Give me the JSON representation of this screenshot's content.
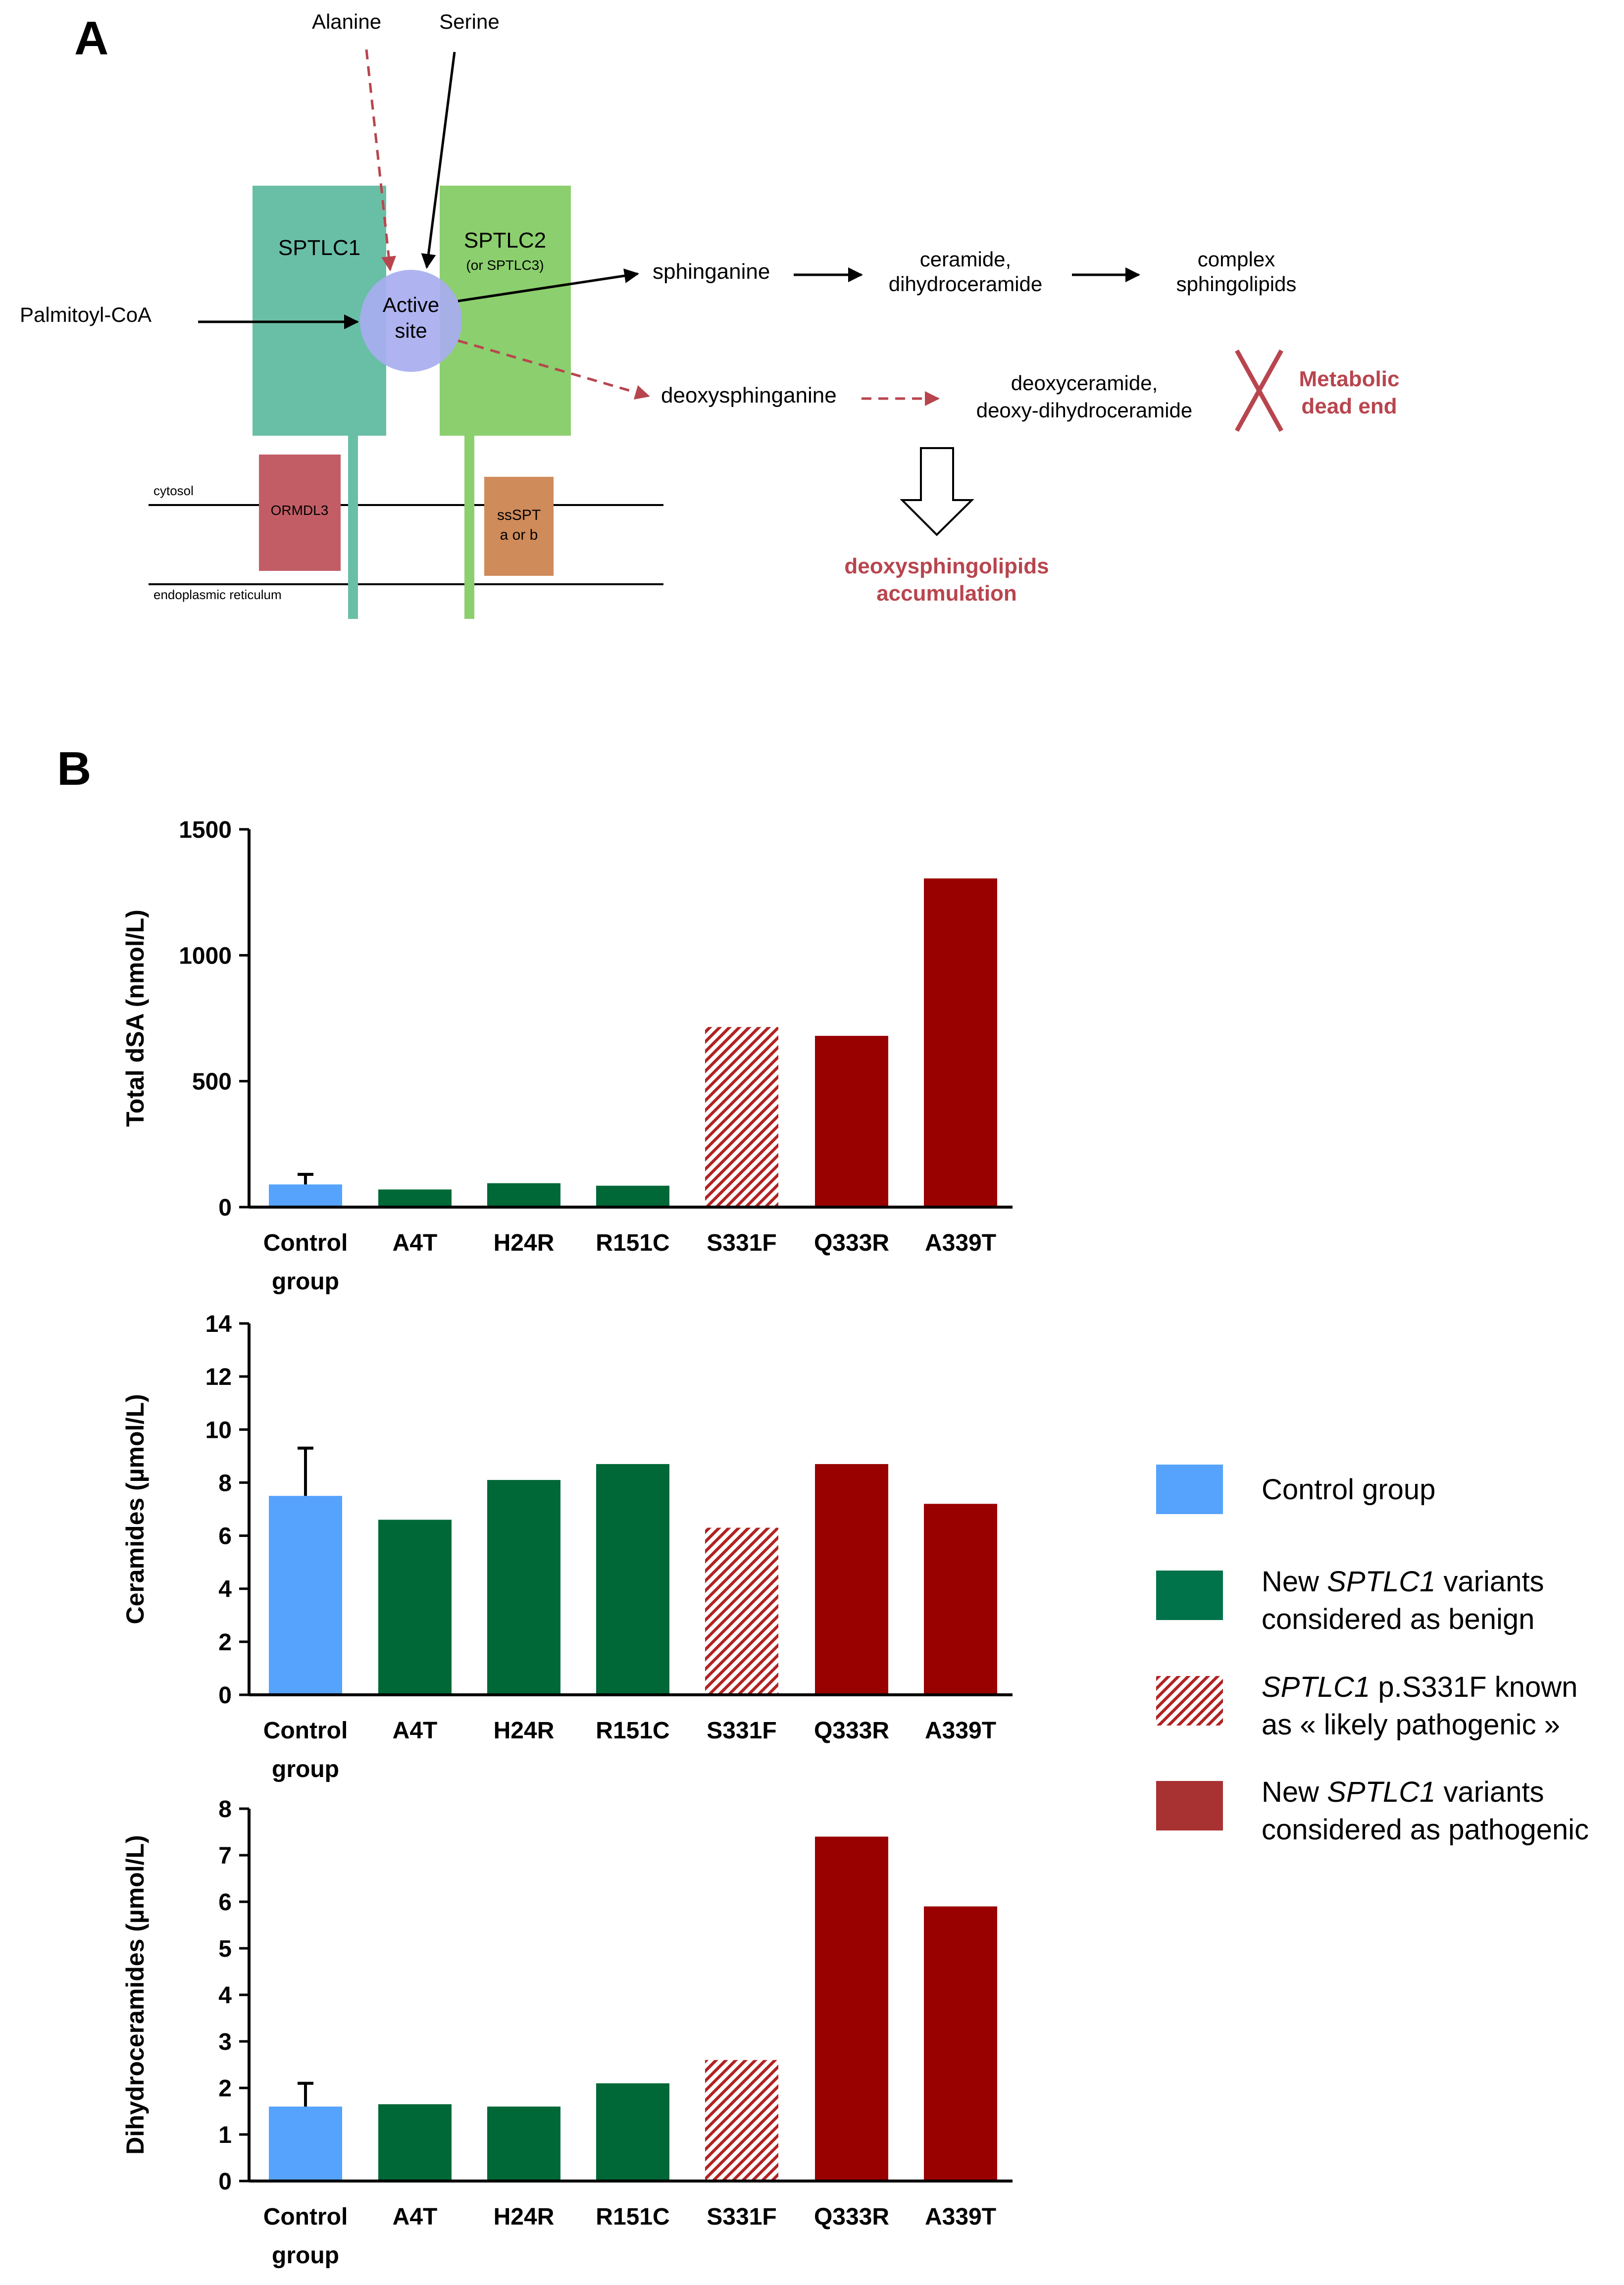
{
  "panel_a": {
    "label": "A",
    "inputs": {
      "alanine": "Alanine",
      "serine": "Serine",
      "palmitoyl": "Palmitoyl-CoA"
    },
    "sptlc1": "SPTLC1",
    "sptlc2": "SPTLC2",
    "sptlc2_note": "(or  SPTLC3)",
    "active_site_line1": "Active",
    "active_site_line2": "site",
    "ormdl3": "ORMDL3",
    "ssspt_line1": "ssSPT",
    "ssspt_line2": "a or  b",
    "cytosol": "cytosol",
    "er": "endoplasmic reticulum",
    "sphinganine": "sphinganine",
    "ceramide_line1": "ceramide,",
    "ceramide_line2": "dihydroceramide",
    "complex_line1": "complex",
    "complex_line2": "sphingolipids",
    "deoxysphinganine": "deoxysphinganine",
    "deoxyceramide_line1": "deoxyceramide,",
    "deoxyceramide_line2": "deoxy-dihydroceramide",
    "dead_end_line1": "Metabolic",
    "dead_end_line2": "dead end",
    "accum_line1": "deoxysphingolipids",
    "accum_line2": "accumulation",
    "colors": {
      "sptlc1": "#69bfa6",
      "sptlc2": "#8ccf6e",
      "ormdl3": "#c25d66",
      "ssspt": "#cf8b5a",
      "red": "#b8454e",
      "site": "#a8aef0"
    }
  },
  "panel_b": {
    "label": "B",
    "colors": {
      "control": "#55a3fc",
      "benign": "#006837",
      "pathogenic": "#990000",
      "likely": "#b22222"
    }
  },
  "legend": [
    {
      "kind": "control",
      "line1": "Control group",
      "line2": ""
    },
    {
      "kind": "benign",
      "line1": "New SPTLC1 variants",
      "line2": "considered as benign"
    },
    {
      "kind": "likely",
      "line1": "SPTLC1 p.S331F known",
      "line2": "as « likely pathogenic »"
    },
    {
      "kind": "pathogenic",
      "line1": "New SPTLC1 variants",
      "line2": "considered as pathogenic"
    }
  ],
  "chart_data": [
    {
      "type": "bar",
      "ylabel": "Total dSA (nmol/L)",
      "ylim": [
        0,
        1500
      ],
      "yticks": [
        0,
        500,
        1000,
        1500
      ],
      "categories": [
        "Control group",
        "A4T",
        "H24R",
        "R151C",
        "S331F",
        "Q333R",
        "A339T"
      ],
      "values": [
        90,
        70,
        95,
        85,
        715,
        680,
        1305
      ],
      "error_upper": [
        130,
        null,
        null,
        null,
        null,
        null,
        null
      ],
      "groups": [
        "control",
        "benign",
        "benign",
        "benign",
        "likely",
        "pathogenic",
        "pathogenic"
      ]
    },
    {
      "type": "bar",
      "ylabel": "Ceramides (µmol/L)",
      "ylim": [
        0,
        14
      ],
      "yticks": [
        0,
        2,
        4,
        6,
        8,
        10,
        12,
        14
      ],
      "categories": [
        "Control group",
        "A4T",
        "H24R",
        "R151C",
        "S331F",
        "Q333R",
        "A339T"
      ],
      "values": [
        7.5,
        6.6,
        8.1,
        8.7,
        6.3,
        8.7,
        7.2
      ],
      "error_upper": [
        9.3,
        null,
        null,
        null,
        null,
        null,
        null
      ],
      "groups": [
        "control",
        "benign",
        "benign",
        "benign",
        "likely",
        "pathogenic",
        "pathogenic"
      ]
    },
    {
      "type": "bar",
      "ylabel": "Dihydroceramides (µmol/L)",
      "ylim": [
        0,
        8
      ],
      "yticks": [
        0,
        1,
        2,
        3,
        4,
        5,
        6,
        7,
        8
      ],
      "categories": [
        "Control group",
        "A4T",
        "H24R",
        "R151C",
        "S331F",
        "Q333R",
        "A339T"
      ],
      "values": [
        1.6,
        1.65,
        1.6,
        2.1,
        2.6,
        7.4,
        5.9
      ],
      "error_upper": [
        2.1,
        null,
        null,
        null,
        null,
        null,
        null
      ],
      "groups": [
        "control",
        "benign",
        "benign",
        "benign",
        "likely",
        "pathogenic",
        "pathogenic"
      ]
    }
  ]
}
